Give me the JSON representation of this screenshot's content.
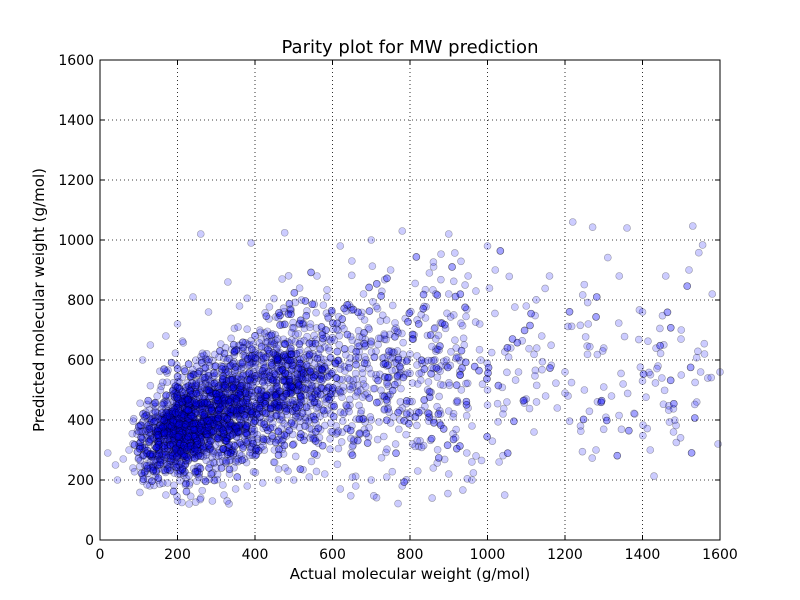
{
  "chart_data": {
    "type": "scatter",
    "title": "Parity plot for MW prediction",
    "xlabel": "Actual molecular weight (g/mol)",
    "ylabel": "Predicted molecular weight (g/mol)",
    "xlim": [
      0,
      1600
    ],
    "ylim": [
      0,
      1600
    ],
    "xticks": [
      0,
      200,
      400,
      600,
      800,
      1000,
      1200,
      1400,
      1600
    ],
    "yticks": [
      0,
      200,
      400,
      600,
      800,
      1000,
      1200,
      1400,
      1600
    ],
    "grid": true,
    "grid_style": "dotted",
    "legend": "none",
    "marker_color": "#0000ff",
    "marker_edge_color": "#000000",
    "marker_alpha": 0.2,
    "series": [
      {
        "points": [
          [
            20,
            290
          ],
          [
            40,
            250
          ],
          [
            45,
            200
          ],
          [
            60,
            270
          ],
          [
            75,
            300
          ],
          [
            85,
            240
          ],
          [
            100,
            320
          ],
          [
            110,
            280
          ],
          [
            120,
            350
          ],
          [
            130,
            260
          ],
          [
            140,
            300
          ],
          [
            150,
            380
          ],
          [
            160,
            280
          ],
          [
            170,
            330
          ],
          [
            180,
            260
          ],
          [
            190,
            420
          ],
          [
            200,
            300
          ],
          [
            210,
            360
          ],
          [
            220,
            250
          ],
          [
            230,
            440
          ],
          [
            240,
            320
          ],
          [
            250,
            380
          ],
          [
            260,
            290
          ],
          [
            270,
            470
          ],
          [
            280,
            340
          ],
          [
            290,
            410
          ],
          [
            300,
            280
          ],
          [
            310,
            500
          ],
          [
            320,
            360
          ],
          [
            330,
            430
          ],
          [
            340,
            300
          ],
          [
            350,
            520
          ],
          [
            360,
            380
          ],
          [
            370,
            450
          ],
          [
            380,
            320
          ],
          [
            390,
            540
          ],
          [
            400,
            400
          ],
          [
            410,
            470
          ],
          [
            420,
            340
          ],
          [
            430,
            560
          ],
          [
            440,
            420
          ],
          [
            450,
            490
          ],
          [
            460,
            360
          ],
          [
            470,
            580
          ],
          [
            480,
            440
          ],
          [
            490,
            510
          ],
          [
            500,
            380
          ],
          [
            510,
            600
          ],
          [
            520,
            460
          ],
          [
            530,
            530
          ],
          [
            540,
            400
          ],
          [
            550,
            620
          ],
          [
            560,
            480
          ],
          [
            570,
            550
          ],
          [
            580,
            420
          ],
          [
            590,
            640
          ],
          [
            600,
            500
          ],
          [
            620,
            570
          ],
          [
            640,
            440
          ],
          [
            660,
            600
          ],
          [
            680,
            520
          ],
          [
            700,
            660
          ],
          [
            720,
            460
          ],
          [
            740,
            580
          ],
          [
            760,
            700
          ],
          [
            780,
            440
          ],
          [
            800,
            620
          ],
          [
            820,
            520
          ],
          [
            840,
            740
          ],
          [
            860,
            400
          ],
          [
            880,
            580
          ],
          [
            900,
            820
          ],
          [
            920,
            460
          ],
          [
            940,
            650
          ],
          [
            960,
            380
          ],
          [
            980,
            720
          ],
          [
            1000,
            500
          ],
          [
            1020,
            900
          ],
          [
            1040,
            420
          ],
          [
            1060,
            640
          ],
          [
            1080,
            560
          ],
          [
            1100,
            780
          ],
          [
            1120,
            360
          ],
          [
            1140,
            680
          ],
          [
            1160,
            880
          ],
          [
            1180,
            440
          ],
          [
            1200,
            560
          ],
          [
            1220,
            1060
          ],
          [
            1240,
            380
          ],
          [
            1260,
            720
          ],
          [
            1280,
            300
          ],
          [
            1300,
            640
          ],
          [
            1320,
            480
          ],
          [
            1340,
            880
          ],
          [
            1360,
            1040
          ],
          [
            1380,
            420
          ],
          [
            1400,
            760
          ],
          [
            1420,
            300
          ],
          [
            1440,
            580
          ],
          [
            1460,
            880
          ],
          [
            1480,
            360
          ],
          [
            1500,
            700
          ],
          [
            1520,
            900
          ],
          [
            1540,
            460
          ],
          [
            1560,
            620
          ],
          [
            1580,
            820
          ],
          [
            1595,
            320
          ],
          [
            150,
            200
          ],
          [
            200,
            230
          ],
          [
            250,
            220
          ],
          [
            300,
            240
          ],
          [
            350,
            260
          ],
          [
            400,
            280
          ],
          [
            450,
            300
          ],
          [
            500,
            320
          ],
          [
            550,
            340
          ],
          [
            600,
            360
          ],
          [
            650,
            380
          ],
          [
            700,
            400
          ],
          [
            750,
            390
          ],
          [
            800,
            410
          ],
          [
            850,
            420
          ],
          [
            900,
            430
          ],
          [
            950,
            440
          ],
          [
            1000,
            450
          ],
          [
            1050,
            460
          ],
          [
            1100,
            470
          ],
          [
            1150,
            480
          ],
          [
            1200,
            490
          ],
          [
            1250,
            500
          ],
          [
            1300,
            510
          ],
          [
            1350,
            520
          ],
          [
            1400,
            530
          ],
          [
            1450,
            540
          ],
          [
            1500,
            550
          ],
          [
            1550,
            560
          ],
          [
            1600,
            560
          ],
          [
            260,
            1020
          ],
          [
            390,
            990
          ],
          [
            620,
            980
          ],
          [
            700,
            1000
          ],
          [
            780,
            1030
          ],
          [
            900,
            1020
          ],
          [
            1000,
            980
          ],
          [
            240,
            810
          ],
          [
            330,
            860
          ],
          [
            470,
            870
          ],
          [
            560,
            880
          ],
          [
            650,
            930
          ],
          [
            750,
            900
          ],
          [
            850,
            890
          ],
          [
            950,
            880
          ],
          [
            110,
            600
          ],
          [
            130,
            650
          ],
          [
            170,
            680
          ],
          [
            200,
            720
          ],
          [
            280,
            760
          ],
          [
            360,
            780
          ],
          [
            520,
            800
          ],
          [
            680,
            820
          ],
          [
            170,
            150
          ],
          [
            200,
            130
          ],
          [
            230,
            120
          ],
          [
            260,
            140
          ],
          [
            290,
            130
          ],
          [
            320,
            150
          ],
          [
            350,
            170
          ],
          [
            380,
            180
          ],
          [
            420,
            190
          ],
          [
            460,
            200
          ],
          [
            500,
            200
          ],
          [
            540,
            210
          ],
          [
            580,
            220
          ],
          [
            620,
            170
          ],
          [
            660,
            180
          ],
          [
            700,
            200
          ],
          [
            740,
            210
          ],
          [
            780,
            180
          ],
          [
            820,
            230
          ],
          [
            860,
            240
          ],
          [
            900,
            220
          ],
          [
            960,
            200
          ],
          [
            1030,
            260
          ]
        ]
      }
    ]
  }
}
